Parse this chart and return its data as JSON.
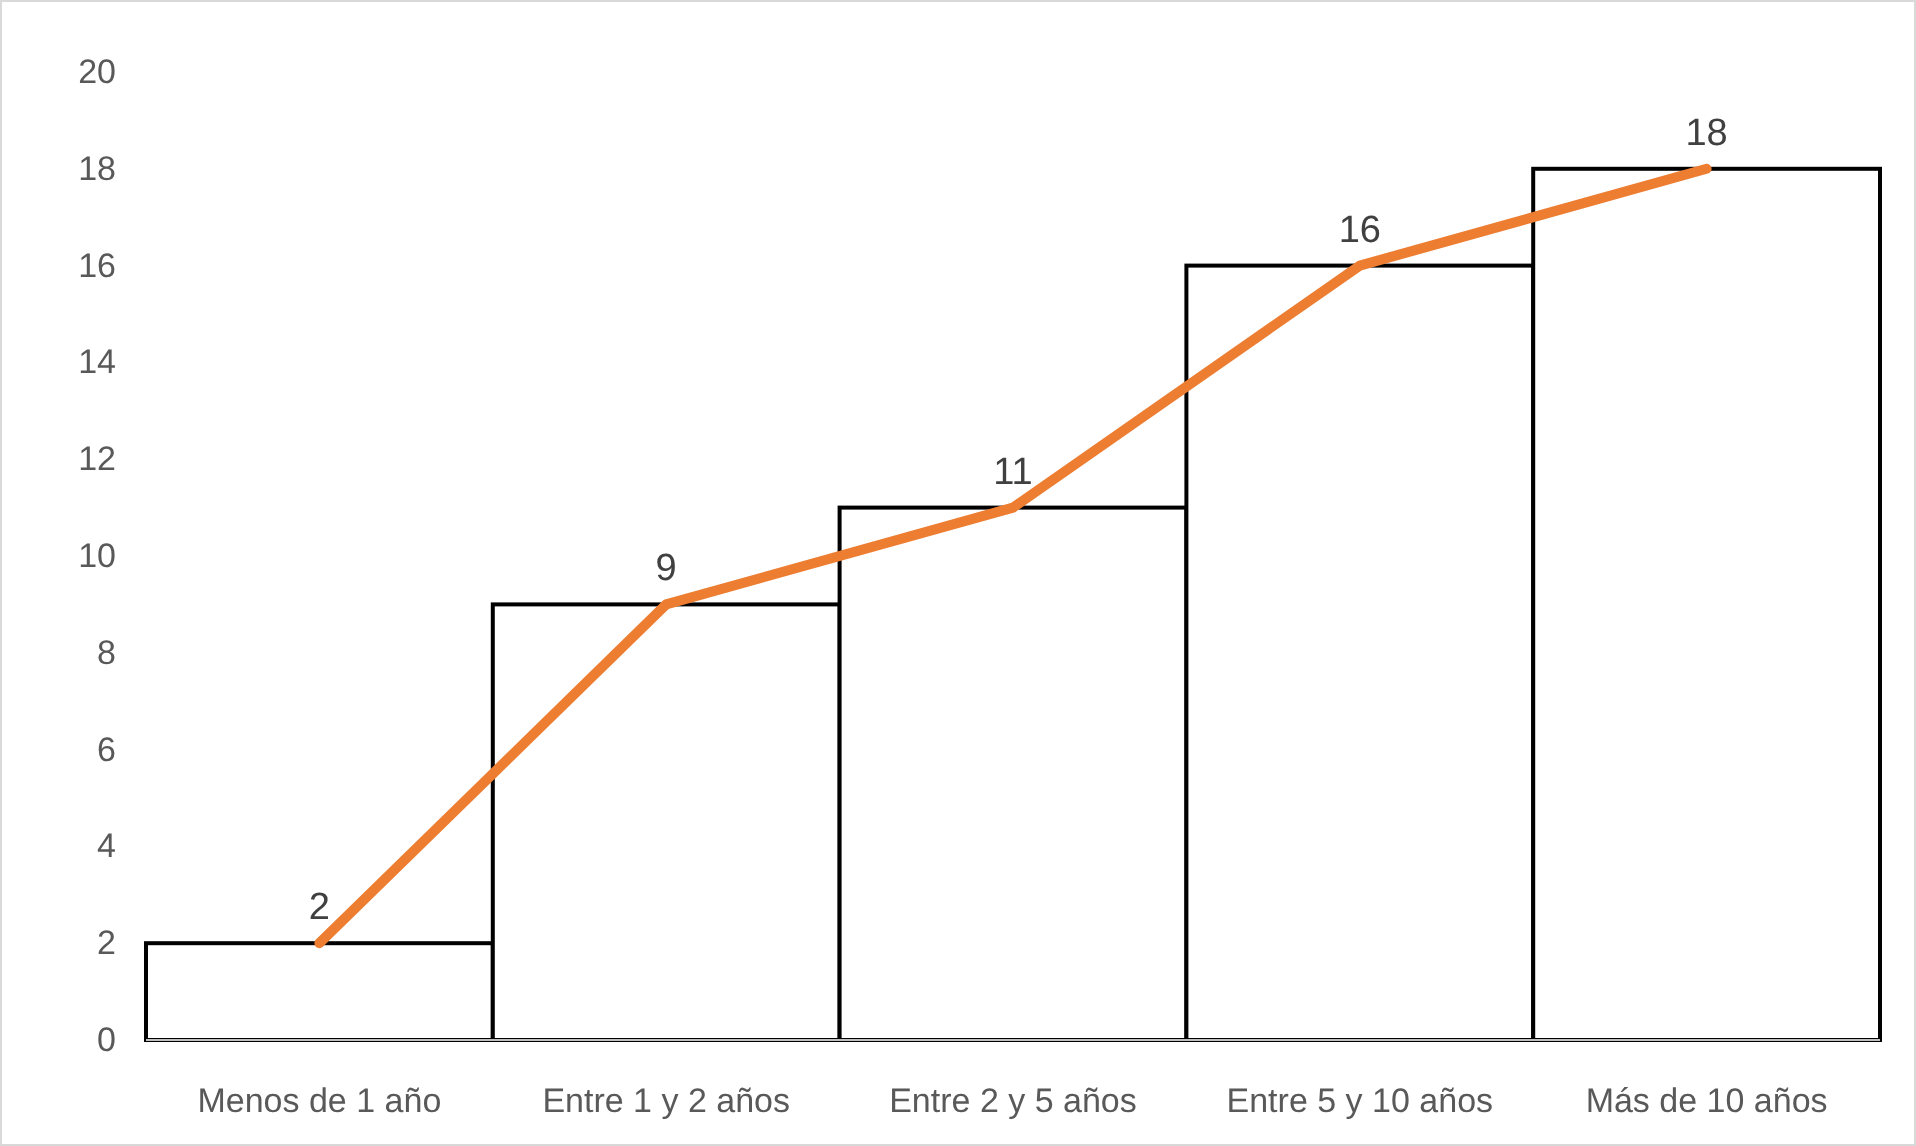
{
  "chart_data": {
    "type": "bar",
    "categories": [
      "Menos de 1 año",
      "Entre 1 y 2 años",
      "Entre 2 y 5 años",
      "Entre 5 y 10 años",
      "Más de 10 años"
    ],
    "ylim": [
      0,
      20
    ],
    "yticks": [
      0,
      2,
      4,
      6,
      8,
      10,
      12,
      14,
      16,
      18,
      20
    ],
    "grid": false,
    "series": [
      {
        "color": "#ffffff",
        "values": [
          2,
          9,
          11,
          16,
          18
        ]
      },
      {
        "type": "line",
        "color": "#ed7d31",
        "values": [
          2,
          9,
          11,
          16,
          18
        ],
        "value_labels": [
          "2",
          "9",
          "11",
          "16",
          "18"
        ]
      }
    ]
  }
}
